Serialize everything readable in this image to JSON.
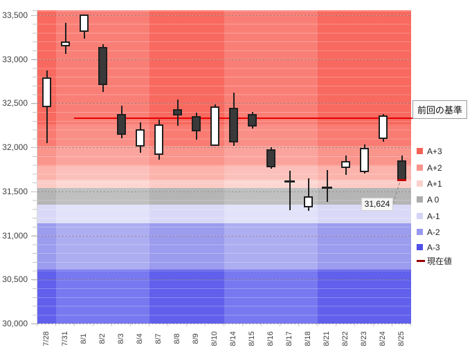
{
  "chart_data": {
    "type": "candlestick",
    "title": "",
    "ylim": [
      30000,
      33555
    ],
    "yticks": [
      {
        "label": "33,500",
        "value": 33500
      },
      {
        "label": "33,000",
        "value": 33000
      },
      {
        "label": "32,500",
        "value": 32500
      },
      {
        "label": "32,000",
        "value": 32000
      },
      {
        "label": "31,500",
        "value": 31500
      },
      {
        "label": "31,000",
        "value": 31000
      },
      {
        "label": "30,500",
        "value": 30500
      },
      {
        "label": "30,000",
        "value": 30000
      }
    ],
    "categories": [
      "7/28",
      "7/31",
      "8/1",
      "8/2",
      "8/3",
      "8/4",
      "8/7",
      "8/8",
      "8/9",
      "8/10",
      "8/14",
      "8/15",
      "8/16",
      "8/17",
      "8/18",
      "8/21",
      "8/22",
      "8/23",
      "8/24",
      "8/25"
    ],
    "candles": [
      {
        "date": "7/28",
        "open": 32455,
        "high": 32870,
        "low": 32050,
        "close": 32790,
        "body": "white"
      },
      {
        "date": "7/31",
        "open": 33150,
        "high": 33410,
        "low": 33060,
        "close": 33205,
        "body": "white"
      },
      {
        "date": "8/1",
        "open": 33310,
        "high": 33510,
        "low": 33230,
        "close": 33510,
        "body": "white"
      },
      {
        "date": "8/2",
        "open": 33140,
        "high": 33170,
        "low": 32630,
        "close": 32710,
        "body": "black"
      },
      {
        "date": "8/3",
        "open": 32380,
        "high": 32475,
        "low": 32100,
        "close": 32140,
        "body": "black"
      },
      {
        "date": "8/4",
        "open": 32010,
        "high": 32285,
        "low": 31940,
        "close": 32205,
        "body": "white"
      },
      {
        "date": "8/7",
        "open": 31915,
        "high": 32315,
        "low": 31860,
        "close": 32260,
        "body": "white"
      },
      {
        "date": "8/8",
        "open": 32430,
        "high": 32540,
        "low": 32245,
        "close": 32365,
        "body": "black"
      },
      {
        "date": "8/9",
        "open": 32355,
        "high": 32395,
        "low": 32090,
        "close": 32180,
        "body": "black"
      },
      {
        "date": "8/10",
        "open": 32015,
        "high": 32490,
        "low": 32015,
        "close": 32465,
        "body": "white"
      },
      {
        "date": "8/14",
        "open": 32450,
        "high": 32620,
        "low": 32015,
        "close": 32055,
        "body": "black"
      },
      {
        "date": "8/15",
        "open": 32380,
        "high": 32405,
        "low": 32215,
        "close": 32240,
        "body": "black"
      },
      {
        "date": "8/16",
        "open": 31975,
        "high": 32000,
        "low": 31760,
        "close": 31770,
        "body": "black"
      },
      {
        "date": "8/17",
        "open": 31610,
        "high": 31735,
        "low": 31290,
        "close": 31610,
        "body": "doji"
      },
      {
        "date": "8/18",
        "open": 31320,
        "high": 31650,
        "low": 31280,
        "close": 31445,
        "body": "white"
      },
      {
        "date": "8/21",
        "open": 31540,
        "high": 31740,
        "low": 31385,
        "close": 31540,
        "body": "doji"
      },
      {
        "date": "8/22",
        "open": 31765,
        "high": 31905,
        "low": 31690,
        "close": 31845,
        "body": "white"
      },
      {
        "date": "8/23",
        "open": 31715,
        "high": 32035,
        "low": 31705,
        "close": 31995,
        "body": "white"
      },
      {
        "date": "8/24",
        "open": 32095,
        "high": 32380,
        "low": 32060,
        "close": 32365,
        "body": "white"
      },
      {
        "date": "8/25",
        "open": 31850,
        "high": 31905,
        "low": 31624,
        "close": 31624,
        "body": "black",
        "current": true
      }
    ],
    "baseline": {
      "label": "前回の基準",
      "value": 32450,
      "color": "#e60000"
    },
    "annotation": {
      "label": "31,624",
      "value": 31624
    },
    "legend": [
      {
        "label": "A+3",
        "color": "#f46157",
        "kind": "swatch"
      },
      {
        "label": "A+2",
        "color": "#f8948c",
        "kind": "swatch"
      },
      {
        "label": "A+1",
        "color": "#fbd1cd",
        "kind": "swatch"
      },
      {
        "label": "A 0",
        "color": "#ababab",
        "kind": "swatch"
      },
      {
        "label": "A-1",
        "color": "#d4d4f6",
        "kind": "swatch"
      },
      {
        "label": "A-2",
        "color": "#9898f0",
        "kind": "swatch"
      },
      {
        "label": "A-3",
        "color": "#4f4fe8",
        "kind": "swatch"
      },
      {
        "label": "現在値",
        "color": "#990000",
        "kind": "line"
      }
    ],
    "bands": {
      "stops": [
        {
          "top": 33555,
          "bottom": 32260,
          "key": "z3"
        },
        {
          "top": 32260,
          "bottom": 32020,
          "key": "b1"
        },
        {
          "top": 32020,
          "bottom": 31790,
          "key": "b2"
        },
        {
          "top": 31790,
          "bottom": 31630,
          "key": "z1a"
        },
        {
          "top": 31630,
          "bottom": 31540,
          "key": "z1b"
        },
        {
          "top": 31540,
          "bottom": 31350,
          "key": "z0"
        },
        {
          "top": 31350,
          "bottom": 31140,
          "key": "m1"
        },
        {
          "top": 31140,
          "bottom": 30610,
          "key": "m2"
        },
        {
          "top": 30610,
          "bottom": 30000,
          "key": "m3"
        }
      ],
      "palette_dark": {
        "z3": "#f8695f",
        "b1": "#f97b71",
        "b2": "#fa958c",
        "z1a": "#fbb3ac",
        "z1b": "#fccbc6",
        "z0": "#b5b5b5",
        "m1": "#d9d9f7",
        "m2": "#9c9cee",
        "m3": "#6060ec"
      },
      "palette_light": {
        "z3": "#f97f76",
        "b1": "#fa8f87",
        "b2": "#fba49d",
        "z1a": "#fcc0ba",
        "z1b": "#fdd6d2",
        "z0": "#c0c0c0",
        "m1": "#e2e2fa",
        "m2": "#adadf2",
        "m3": "#7878f0"
      }
    },
    "week_sections": [
      {
        "start_col": 0,
        "end_col": 0,
        "shade": "dark"
      },
      {
        "start_col": 1,
        "end_col": 5,
        "shade": "light"
      },
      {
        "start_col": 6,
        "end_col": 9,
        "shade": "dark"
      },
      {
        "start_col": 10,
        "end_col": 14,
        "shade": "light"
      },
      {
        "start_col": 15,
        "end_col": 19,
        "shade": "dark"
      }
    ]
  }
}
